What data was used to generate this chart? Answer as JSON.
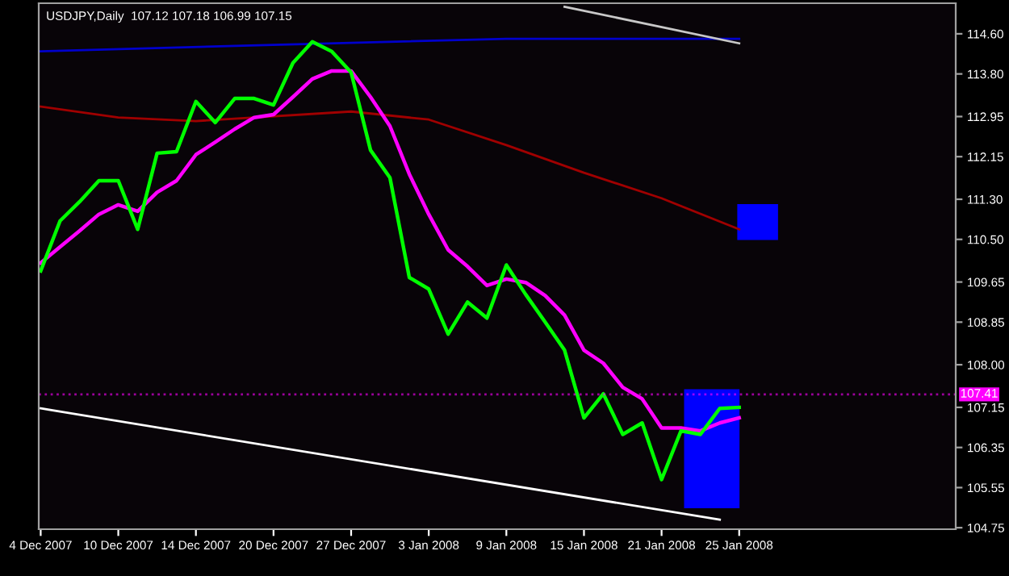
{
  "chart_data": {
    "type": "line",
    "title": "USDJPY,Daily  107.12 107.18 106.99 107.15",
    "categories": [
      "4 Dec 2007",
      null,
      null,
      null,
      "10 Dec 2007",
      null,
      null,
      null,
      "14 Dec 2007",
      null,
      null,
      null,
      "20 Dec 2007",
      null,
      null,
      null,
      "27 Dec 2007",
      null,
      null,
      null,
      "3 Jan 2008",
      null,
      null,
      null,
      "9 Jan 2008",
      null,
      null,
      null,
      "15 Jan 2008",
      null,
      null,
      null,
      "21 Jan 2008",
      null,
      null,
      null,
      "25 Jan 2008"
    ],
    "series": [
      {
        "color": "#0000cc",
        "values": [
          114.25,
          null,
          null,
          null,
          null,
          null,
          null,
          null,
          null,
          null,
          null,
          null,
          114.38,
          null,
          null,
          null,
          null,
          null,
          null,
          null,
          null,
          null,
          null,
          null,
          114.5,
          null,
          null,
          null,
          null,
          null,
          null,
          null,
          null,
          null,
          null,
          null,
          114.5
        ]
      },
      {
        "color": "#a00000",
        "values": [
          113.15,
          null,
          null,
          null,
          112.93,
          null,
          null,
          null,
          112.86,
          null,
          null,
          null,
          null,
          null,
          null,
          null,
          113.05,
          null,
          null,
          null,
          112.89,
          null,
          null,
          null,
          112.38,
          null,
          null,
          null,
          111.83,
          null,
          null,
          null,
          111.32,
          null,
          null,
          null,
          110.7
        ]
      },
      {
        "color": "#ffffff",
        "values": [
          107.13,
          null,
          null,
          null,
          null,
          null,
          null,
          null,
          null,
          null,
          null,
          null,
          null,
          null,
          null,
          null,
          null,
          null,
          null,
          null,
          null,
          null,
          null,
          null,
          null,
          null,
          null,
          null,
          null,
          null,
          null,
          null,
          null,
          null,
          null,
          104.91,
          null
        ]
      },
      {
        "color": "#c8c8c8",
        "values": [
          null,
          null,
          null,
          null,
          null,
          null,
          null,
          null,
          null,
          null,
          null,
          null,
          null,
          null,
          null,
          null,
          null,
          null,
          null,
          null,
          null,
          null,
          null,
          null,
          null,
          null,
          null,
          115.14,
          null,
          null,
          null,
          null,
          null,
          null,
          null,
          null,
          114.41
        ]
      },
      {
        "color": "#ff00ff",
        "values": [
          110.03,
          110.35,
          110.67,
          111.0,
          111.19,
          111.06,
          111.44,
          111.67,
          112.19,
          112.44,
          112.7,
          112.93,
          112.99,
          113.34,
          113.7,
          113.86,
          113.86,
          113.34,
          112.76,
          111.8,
          111.0,
          110.29,
          109.96,
          109.58,
          109.71,
          109.64,
          109.38,
          108.99,
          108.29,
          108.03,
          107.55,
          107.32,
          106.74,
          106.74,
          106.68,
          106.84,
          106.94
        ]
      },
      {
        "color": "#00ff00",
        "values": [
          109.87,
          110.87,
          111.25,
          111.67,
          111.67,
          110.7,
          112.22,
          112.25,
          113.25,
          112.83,
          113.31,
          113.31,
          113.18,
          114.02,
          114.44,
          114.25,
          113.83,
          112.28,
          111.73,
          109.74,
          109.51,
          108.61,
          109.25,
          108.93,
          109.99,
          109.4,
          108.85,
          108.29,
          106.94,
          107.42,
          106.61,
          106.84,
          105.71,
          106.68,
          106.61,
          107.13,
          107.15
        ]
      }
    ],
    "ylim": [
      104.72,
      115.21
    ],
    "yticks": [
      {
        "value": 114.6,
        "label": "114.60"
      },
      {
        "value": 113.8,
        "label": "113.80"
      },
      112.95,
      112.15,
      {
        "value": 111.3,
        "label": "111.30"
      },
      {
        "value": 110.5,
        "label": "110.50"
      },
      109.65,
      108.85,
      {
        "value": 108.0,
        "label": "108.00"
      },
      107.15,
      106.35,
      105.55,
      104.75
    ],
    "ref_lines": [
      {
        "axis": "y",
        "value": 107.41,
        "label": "107.41",
        "color": "#ff00ff",
        "line_style": "dotted"
      }
    ],
    "grid": false,
    "legend": false,
    "marker": "none",
    "line_style": "solid"
  }
}
